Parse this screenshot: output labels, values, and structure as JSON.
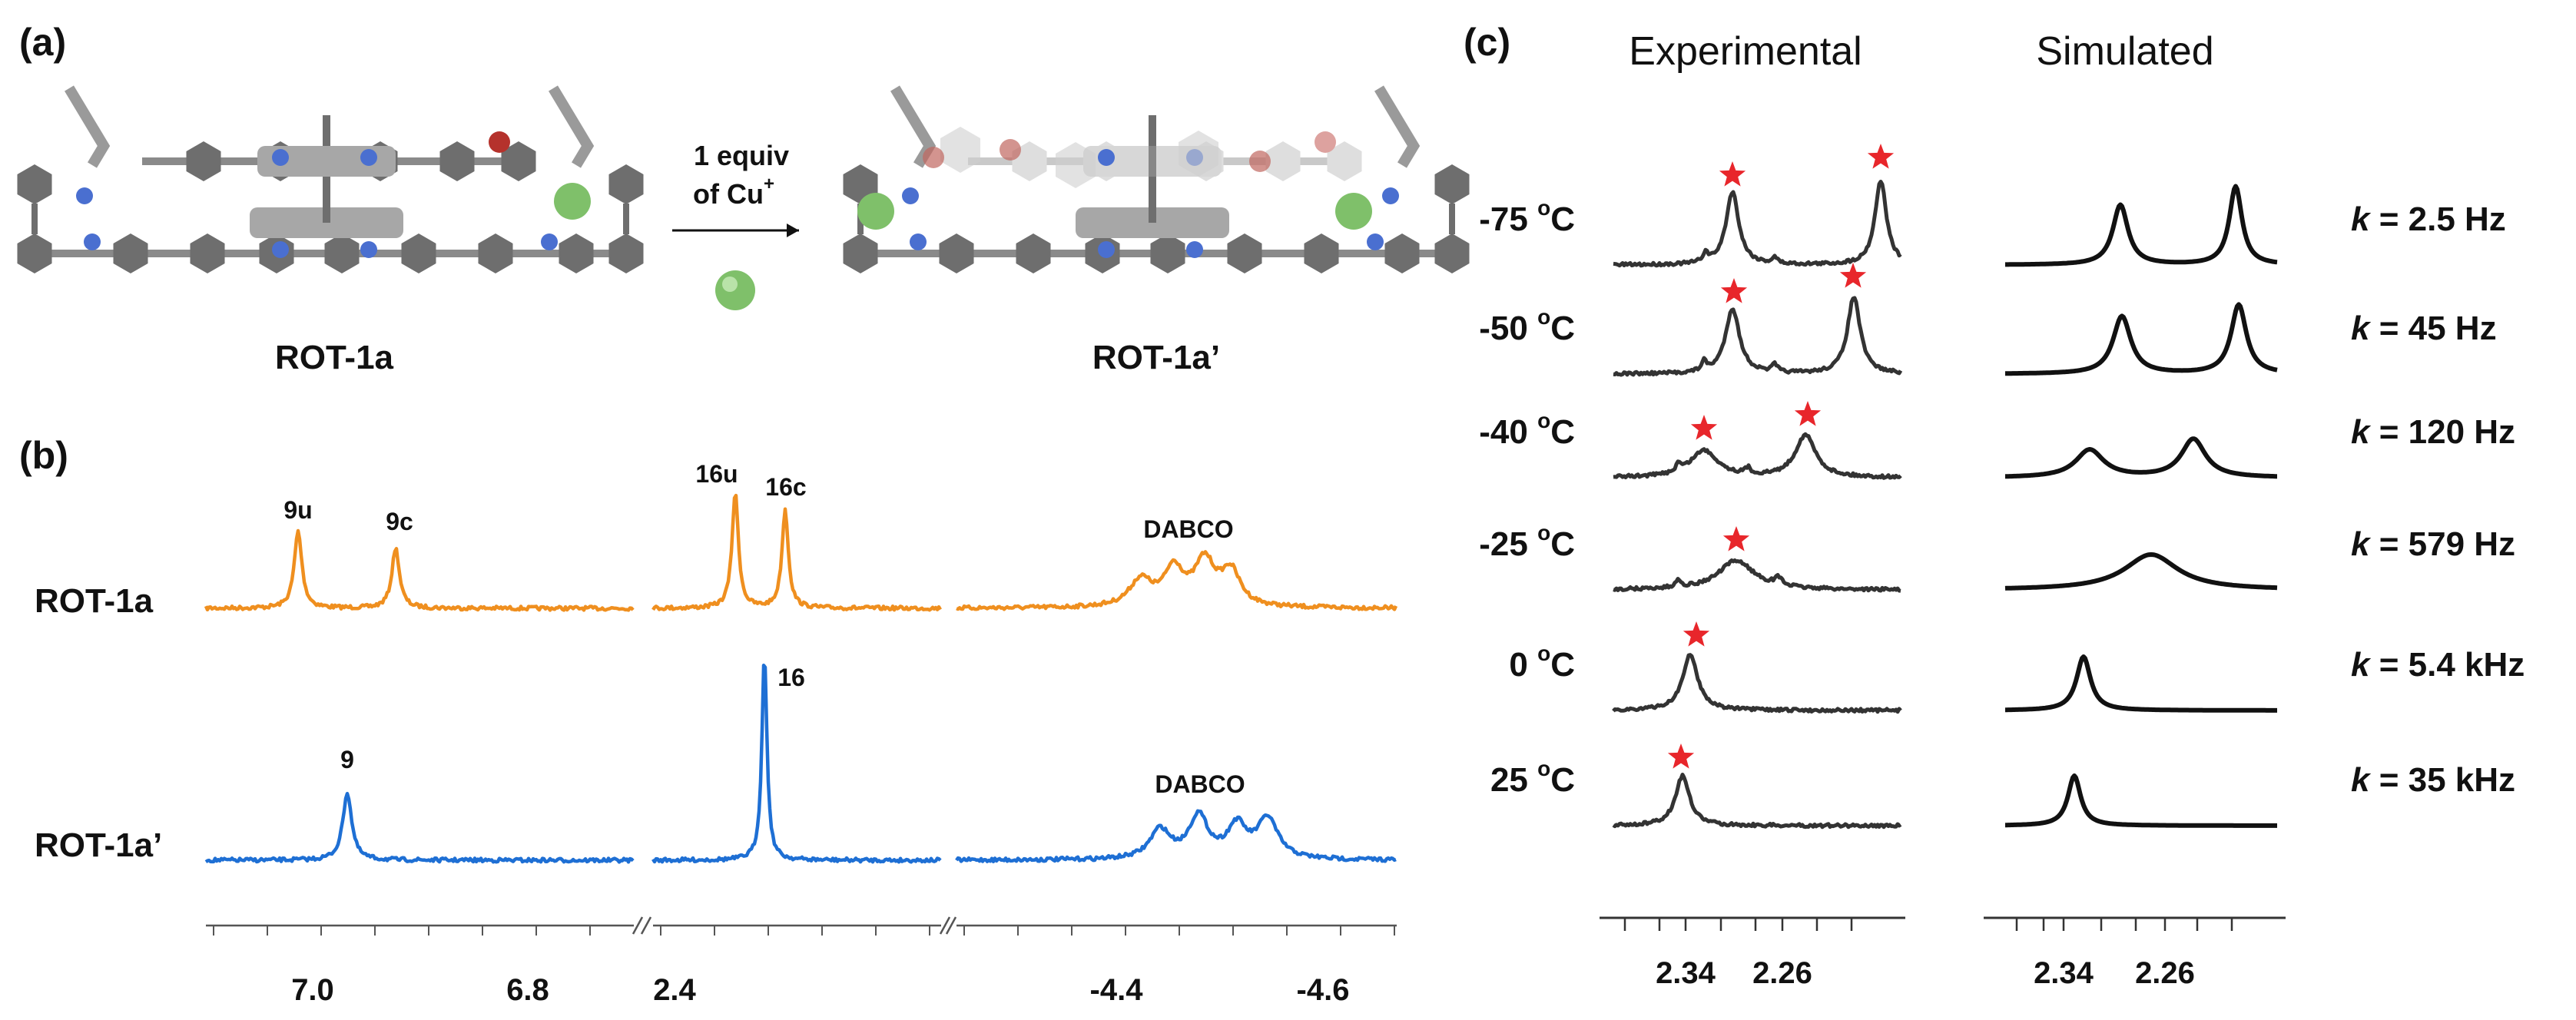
{
  "panel_a": {
    "label": "(a)",
    "left_name": "ROT-1a",
    "right_name": "ROT-1a’",
    "arrow_text_line1": "1 equiv",
    "arrow_text_line2": "of Cu",
    "arrow_text_sup": "+"
  },
  "panel_b": {
    "label": "(b)",
    "spectra": [
      {
        "name": "ROT-1a",
        "color": "#ef8f1f",
        "peaks": [
          {
            "label": "9u"
          },
          {
            "label": "9c"
          },
          {
            "label": "16u"
          },
          {
            "label": "16c"
          },
          {
            "label": "DABCO"
          }
        ]
      },
      {
        "name": "ROT-1a’",
        "color": "#1e6fd4",
        "peaks": [
          {
            "label": "9"
          },
          {
            "label": "16"
          },
          {
            "label": "DABCO"
          }
        ]
      }
    ],
    "axis_ticks": [
      "7.0",
      "6.8",
      "2.4",
      "-4.4",
      "-4.6"
    ]
  },
  "panel_c": {
    "label": "(c)",
    "experimental_title": "Experimental",
    "simulated_title": "Simulated",
    "star_color": "#e8262b",
    "rows": [
      {
        "temp": "-75 ",
        "temp_sup": "o",
        "temp_unit": "C",
        "k_prefix": "k",
        "k_value": " = 2.5 Hz"
      },
      {
        "temp": "-50 ",
        "temp_sup": "o",
        "temp_unit": "C",
        "k_prefix": "k",
        "k_value": " = 45 Hz"
      },
      {
        "temp": "-40 ",
        "temp_sup": "o",
        "temp_unit": "C",
        "k_prefix": "k",
        "k_value": " = 120 Hz"
      },
      {
        "temp": "-25 ",
        "temp_sup": "o",
        "temp_unit": "C",
        "k_prefix": "k",
        "k_value": " = 579 Hz"
      },
      {
        "temp": "0 ",
        "temp_sup": "o",
        "temp_unit": "C",
        "k_prefix": "k",
        "k_value": " = 5.4 kHz"
      },
      {
        "temp": "25 ",
        "temp_sup": "o",
        "temp_unit": "C",
        "k_prefix": "k",
        "k_value": " = 35 kHz"
      }
    ],
    "axis_ticks_experimental": [
      "2.34",
      "2.26"
    ],
    "axis_ticks_simulated": [
      "2.34",
      "2.26"
    ]
  }
}
